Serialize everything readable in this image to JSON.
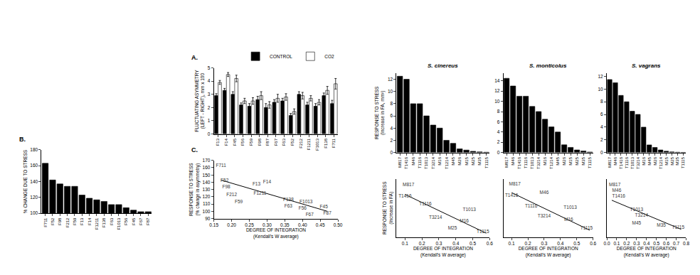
{
  "chart_data": [
    {
      "type": "bar",
      "title": "A.",
      "categories": [
        "F13",
        "F14",
        "F45",
        "F56",
        "F59",
        "F98",
        "F87",
        "F67",
        "F63",
        "F52",
        "F212",
        "F1211",
        "F1013",
        "F138",
        "F711"
      ],
      "series": [
        {
          "name": "CONTROL",
          "color": "#000000",
          "values": [
            2.9,
            3.3,
            3.0,
            2.2,
            2.1,
            2.6,
            2.0,
            2.4,
            2.5,
            1.4,
            3.0,
            2.2,
            2.1,
            2.9,
            2.3
          ],
          "errors": [
            0.15,
            0.15,
            0.2,
            0.15,
            0.2,
            0.25,
            0.3,
            0.2,
            0.2,
            0.15,
            0.2,
            0.2,
            0.2,
            0.2,
            0.25
          ]
        },
        {
          "name": "CO2",
          "color": "#ffffff",
          "values": [
            3.9,
            4.5,
            4.2,
            2.5,
            2.5,
            2.9,
            2.2,
            2.7,
            2.8,
            1.7,
            2.9,
            2.7,
            2.4,
            3.3,
            3.8
          ],
          "errors": [
            0.15,
            0.15,
            0.25,
            0.2,
            0.25,
            0.3,
            0.25,
            0.3,
            0.25,
            0.2,
            0.25,
            0.2,
            0.2,
            0.3,
            0.4
          ]
        }
      ],
      "ylabel": "FLUCTUATING ASYMMETRY\n(LEFT - RIGHT), mm x 100",
      "ylim": [
        0,
        5
      ],
      "yticks": [
        0,
        1,
        2,
        3,
        4,
        5
      ],
      "legend": "top right"
    },
    {
      "type": "bar",
      "title": "B.",
      "categories": [
        "F711",
        "F52",
        "F98",
        "F212",
        "F59",
        "F13",
        "F14",
        "F1211",
        "F138",
        "F63",
        "F1013",
        "F56",
        "F45",
        "F67",
        "F87"
      ],
      "values": [
        163,
        142,
        137,
        134,
        134,
        123,
        119,
        117,
        115,
        111,
        111,
        107,
        104,
        102,
        102
      ],
      "color": "#000000",
      "ylabel": "% CHANGE DUE TO STRESS",
      "ylim": [
        100,
        180
      ],
      "yticks": [
        100,
        120,
        140,
        160,
        180
      ]
    },
    {
      "type": "scatter",
      "title": "C.",
      "marker": "label",
      "labels": [
        "F711",
        "F52",
        "F98",
        "F212",
        "F59",
        "F13",
        "F14",
        "F1211",
        "F138",
        "F63",
        "F1013",
        "F56",
        "F45",
        "F87",
        "F67"
      ],
      "x": [
        0.17,
        0.18,
        0.185,
        0.2,
        0.22,
        0.27,
        0.3,
        0.28,
        0.36,
        0.36,
        0.41,
        0.4,
        0.46,
        0.47,
        0.42
      ],
      "y": [
        163,
        142,
        133,
        122,
        113,
        137,
        140,
        124,
        116,
        107,
        113,
        104,
        106,
        97,
        95
      ],
      "trend_line": {
        "x": [
          0.17,
          0.47
        ],
        "y": [
          143,
          100
        ]
      },
      "xlabel": "DEGREE OF INTEGRATION\n(Kendall's W average)",
      "ylabel": "RESPONSE TO STRESS\n(% change in asymmetry)",
      "xlim": [
        0.15,
        0.5
      ],
      "xticks": [
        0.15,
        {
          "value": 0.2,
          "label": "0.20"
        },
        0.25,
        {
          "value": 0.3,
          "label": "0.30"
        },
        0.35,
        {
          "value": 0.4,
          "label": "0.40"
        },
        0.45,
        {
          "value": 0.5,
          "label": "0.50"
        }
      ],
      "ylim": [
        90,
        170
      ],
      "yticks": [
        90,
        100,
        110,
        120,
        130,
        140,
        150,
        160,
        170
      ]
    },
    {
      "type": "bar",
      "title": "S. cinereus",
      "categories": [
        "M817",
        "T1416",
        "M46",
        "T1116",
        "T1013",
        "T3214",
        "M16",
        "T1214",
        "M45",
        "M26",
        "M15",
        "M25",
        "M35",
        "T1115"
      ],
      "values": [
        12.5,
        12,
        8,
        8,
        6,
        4.5,
        4,
        2,
        1.5,
        0.6,
        0.4,
        0.2,
        0.1,
        0.05
      ],
      "color": "#000000",
      "ylabel": "RESPONSE TO STRESS\n(Increase in FA, mm²)",
      "ylim": [
        0,
        13
      ],
      "yticks": [
        0,
        2,
        4,
        6,
        8,
        10,
        12
      ]
    },
    {
      "type": "bar",
      "title": "S. monticolus",
      "categories": [
        "M817",
        "M46",
        "T1416",
        "T1116",
        "T1013",
        "T3214",
        "M16",
        "T1214",
        "M45",
        "M26",
        "M15",
        "M25",
        "M35",
        "T1115"
      ],
      "values": [
        14.5,
        13,
        11,
        11,
        9,
        8,
        6.5,
        5,
        4,
        1.5,
        1,
        0.5,
        0.3,
        0.1
      ],
      "color": "#000000",
      "ylim": [
        0,
        15.5
      ],
      "yticks": [
        0,
        2,
        4,
        6,
        8,
        10,
        12,
        14
      ]
    },
    {
      "type": "bar",
      "title": "S. vagrans",
      "categories": [
        "M817",
        "M46",
        "T1416",
        "T1116",
        "T1013",
        "T3214",
        "M16",
        "M45",
        "M26",
        "T1214",
        "M15",
        "M25",
        "M35",
        "T1115"
      ],
      "values": [
        11.5,
        11,
        9,
        8,
        6.5,
        6,
        4,
        1.2,
        0.8,
        0.4,
        0.2,
        0.1,
        0.05,
        0.02
      ],
      "color": "#000000",
      "ylim": [
        0,
        12.5
      ],
      "yticks": [
        0,
        2,
        4,
        6,
        8,
        10,
        12
      ]
    },
    {
      "type": "scatter",
      "marker": "label",
      "tick_labels": "x",
      "labels": [
        "M817",
        "T1416",
        "T1116",
        "T1013",
        "T3214",
        "M16",
        "M25",
        "T1115"
      ],
      "x": [
        0.12,
        0.1,
        0.22,
        0.48,
        0.28,
        0.45,
        0.38,
        0.56
      ],
      "y": [
        12.5,
        9.5,
        7.5,
        6,
        4,
        3,
        1.2,
        0.3
      ],
      "trend_line": {
        "x": [
          0.1,
          0.58
        ],
        "y": [
          10,
          0
        ]
      },
      "xlabel": "DEGREE OF INTEGRATION\n(Kendall's W average)",
      "ylabel": "RESPONSE TO STRESS\n(Increase in FA)",
      "xlim": [
        0.05,
        0.6
      ],
      "xticks": [
        0.1,
        0.2,
        0.3,
        0.4,
        0.5,
        0.6
      ],
      "ylim": [
        -1,
        14
      ]
    },
    {
      "type": "scatter",
      "marker": "label",
      "tick_labels": "x",
      "labels": [
        "M817",
        "M46",
        "T1416",
        "T1116",
        "T1013",
        "T3214",
        "M16",
        "T1115"
      ],
      "x": [
        0.12,
        0.3,
        0.1,
        0.22,
        0.46,
        0.3,
        0.45,
        0.56
      ],
      "y": [
        14.5,
        12,
        11,
        8,
        7.5,
        5,
        4,
        1.5
      ],
      "trend_line": {
        "x": [
          0.1,
          0.58
        ],
        "y": [
          12,
          1
        ]
      },
      "xlabel": "DEGREE OF INTEGRATION\n(Kendall's W average)",
      "xlim": [
        0.05,
        0.6
      ],
      "xticks": [
        0.1,
        0.2,
        0.3,
        0.4,
        0.5,
        0.6
      ],
      "ylim": [
        -1,
        16
      ]
    },
    {
      "type": "scatter",
      "marker": "label",
      "tick_labels": "x",
      "labels": [
        "M817",
        "M46",
        "T1416",
        "T1013",
        "T3214",
        "M45",
        "M35",
        "T1115"
      ],
      "x": [
        0.08,
        0.1,
        0.12,
        0.3,
        0.35,
        0.3,
        0.55,
        0.72
      ],
      "y": [
        11.5,
        10,
        8.5,
        5,
        3.5,
        1.5,
        1,
        0.5
      ],
      "trend_line": {
        "x": [
          0.05,
          0.75
        ],
        "y": [
          7.5,
          0
        ]
      },
      "xlabel": "DEGREE OF INTEGRATION\n(Kendall's W average)",
      "xlim": [
        0,
        0.8
      ],
      "xticks": [
        {
          "value": 0,
          "label": "0.0"
        },
        0.1,
        0.2,
        0.3,
        0.4,
        0.5,
        0.6,
        0.7,
        0.8
      ],
      "ylim": [
        -2,
        13
      ]
    }
  ]
}
